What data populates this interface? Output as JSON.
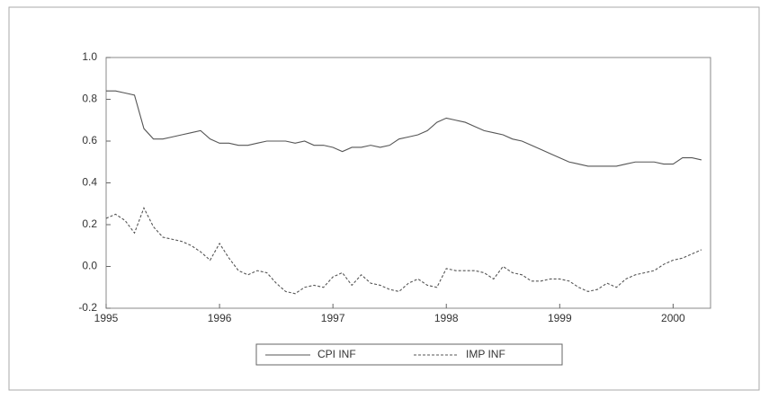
{
  "chart_data": {
    "type": "line",
    "x": [
      1995,
      1995.083,
      1995.167,
      1995.25,
      1995.333,
      1995.417,
      1995.5,
      1995.583,
      1995.667,
      1995.75,
      1995.833,
      1995.917,
      1996,
      1996.083,
      1996.167,
      1996.25,
      1996.333,
      1996.417,
      1996.5,
      1996.583,
      1996.667,
      1996.75,
      1996.833,
      1996.917,
      1997,
      1997.083,
      1997.167,
      1997.25,
      1997.333,
      1997.417,
      1997.5,
      1997.583,
      1997.667,
      1997.75,
      1997.833,
      1997.917,
      1998,
      1998.083,
      1998.167,
      1998.25,
      1998.333,
      1998.417,
      1998.5,
      1998.583,
      1998.667,
      1998.75,
      1998.833,
      1998.917,
      1999,
      1999.083,
      1999.167,
      1999.25,
      1999.333,
      1999.417,
      1999.5,
      1999.583,
      1999.667,
      1999.75,
      1999.833,
      1999.917,
      2000,
      2000.083,
      2000.167,
      2000.25
    ],
    "series": [
      {
        "name": "CPI INF",
        "color": "#555555",
        "dash": false,
        "values": [
          0.84,
          0.84,
          0.83,
          0.82,
          0.66,
          0.61,
          0.61,
          0.62,
          0.63,
          0.64,
          0.65,
          0.61,
          0.59,
          0.59,
          0.58,
          0.58,
          0.59,
          0.6,
          0.6,
          0.6,
          0.59,
          0.6,
          0.58,
          0.58,
          0.57,
          0.55,
          0.57,
          0.57,
          0.58,
          0.57,
          0.58,
          0.61,
          0.62,
          0.63,
          0.65,
          0.69,
          0.71,
          0.7,
          0.69,
          0.67,
          0.65,
          0.64,
          0.63,
          0.61,
          0.6,
          0.58,
          0.56,
          0.54,
          0.52,
          0.5,
          0.49,
          0.48,
          0.48,
          0.48,
          0.48,
          0.49,
          0.5,
          0.5,
          0.5,
          0.49,
          0.49,
          0.52,
          0.52,
          0.51
        ]
      },
      {
        "name": "IMP INF",
        "color": "#555555",
        "dash": true,
        "values": [
          0.23,
          0.25,
          0.22,
          0.16,
          0.28,
          0.19,
          0.14,
          0.13,
          0.12,
          0.1,
          0.07,
          0.03,
          0.11,
          0.04,
          -0.02,
          -0.04,
          -0.02,
          -0.03,
          -0.08,
          -0.12,
          -0.13,
          -0.1,
          -0.09,
          -0.1,
          -0.05,
          -0.03,
          -0.09,
          -0.04,
          -0.08,
          -0.09,
          -0.11,
          -0.12,
          -0.08,
          -0.06,
          -0.09,
          -0.1,
          -0.01,
          -0.02,
          -0.02,
          -0.02,
          -0.03,
          -0.06,
          0.0,
          -0.03,
          -0.04,
          -0.07,
          -0.07,
          -0.06,
          -0.06,
          -0.07,
          -0.1,
          -0.12,
          -0.11,
          -0.08,
          -0.1,
          -0.06,
          -0.04,
          -0.03,
          -0.02,
          0.01,
          0.03,
          0.04,
          0.06,
          0.08
        ]
      }
    ],
    "xlim": [
      1995,
      2000.33
    ],
    "xticks": [
      1995,
      1996,
      1997,
      1998,
      1999,
      2000
    ],
    "ylim": [
      -0.2,
      1.0
    ],
    "yticks": [
      -0.2,
      {
        "value": 0,
        "label": "0.0"
      },
      0.2,
      0.4,
      0.6,
      0.8,
      {
        "value": 1,
        "label": "1.0"
      }
    ],
    "grid": false,
    "legend": "bottom"
  }
}
